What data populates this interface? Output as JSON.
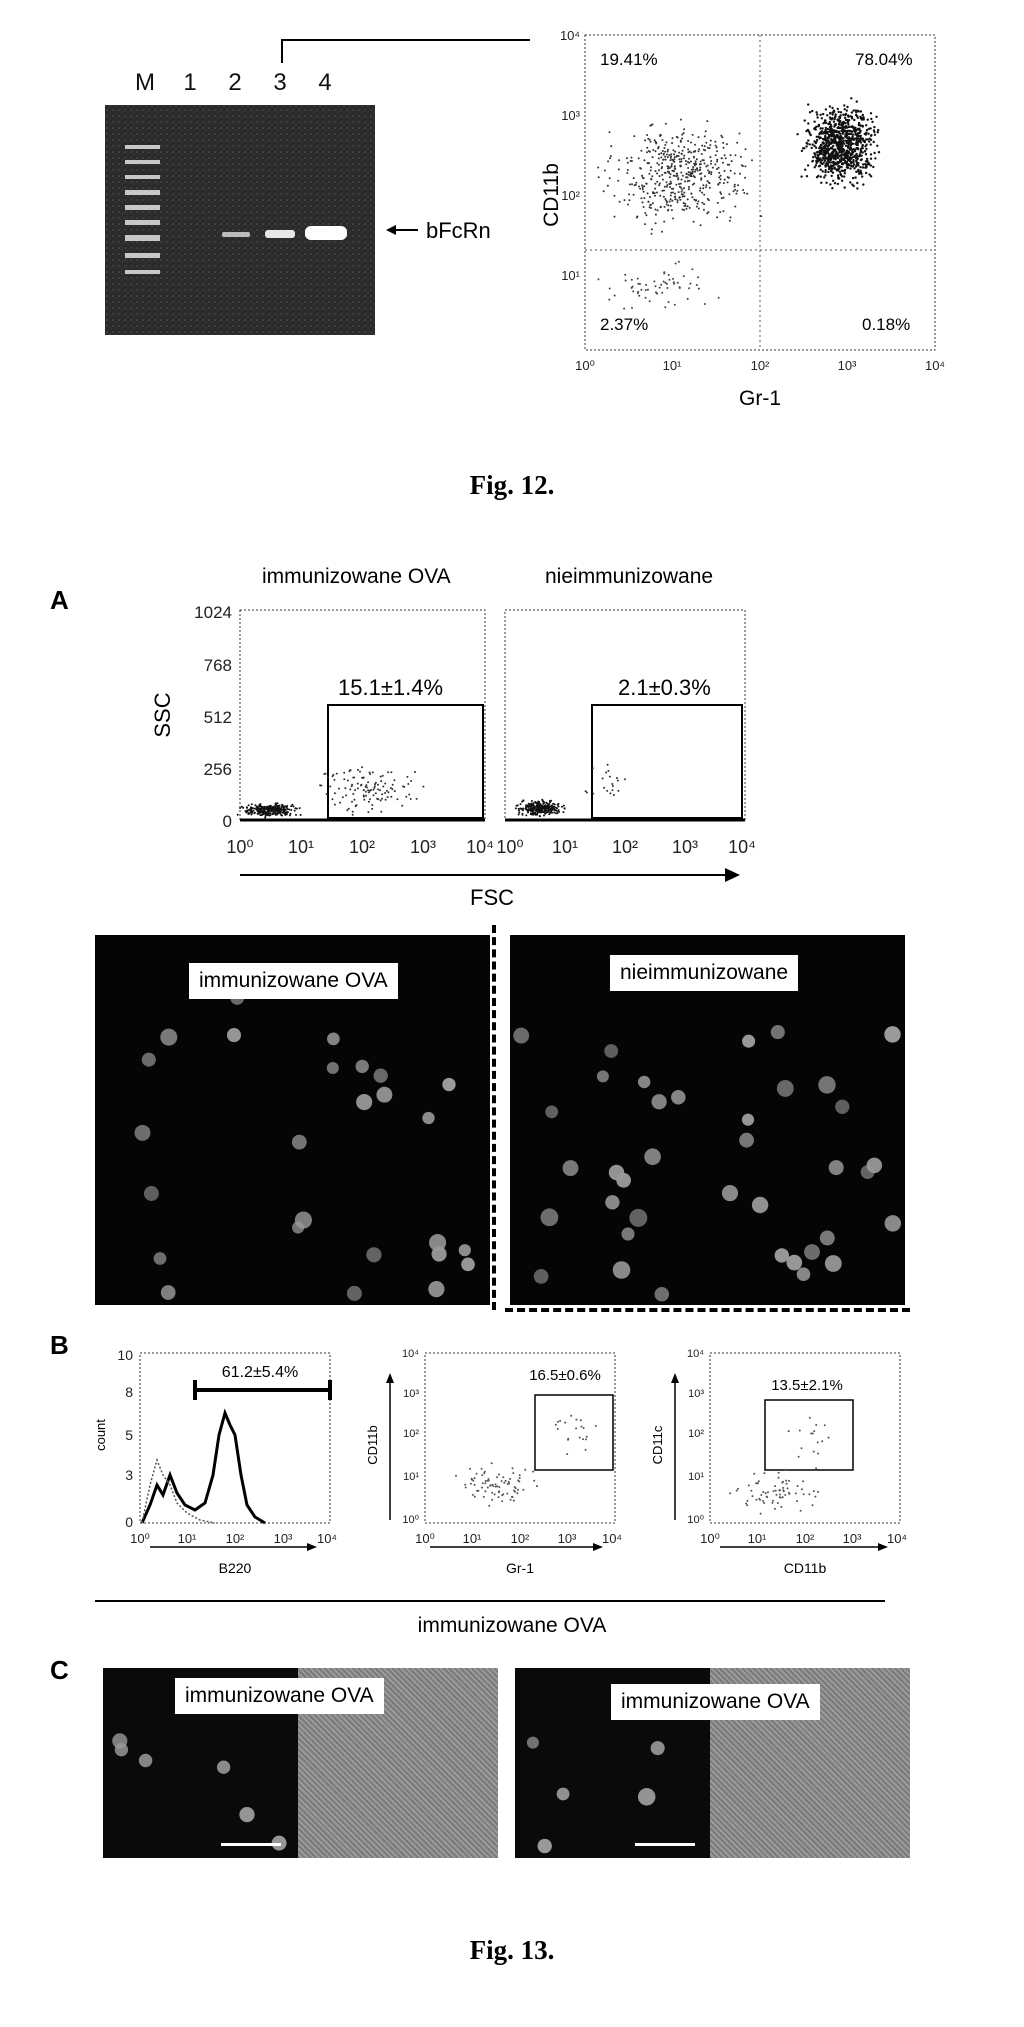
{
  "fig12": {
    "gel": {
      "lanes": [
        "M",
        "1",
        "2",
        "3",
        "4"
      ],
      "band_label": "bFcRn"
    },
    "flow": {
      "y_axis": "CD11b",
      "x_axis": "Gr-1",
      "y_ticks": [
        "10⁰",
        "10¹",
        "10²",
        "10³",
        "10⁴"
      ],
      "x_ticks": [
        "10⁰",
        "10¹",
        "10²",
        "10³",
        "10⁴"
      ],
      "q_top_left": "19.41%",
      "q_top_right": "78.04%",
      "q_bottom_left": "2.37%",
      "q_bottom_right": "0.18%"
    },
    "caption": "Fig. 12."
  },
  "fig13": {
    "panel_a": {
      "letter": "A",
      "title_left": "immunizowane OVA",
      "title_right": "nieimmunizowane",
      "y_axis": "SSC",
      "x_axis": "FSC",
      "y_ticks": [
        "1024",
        "768",
        "512",
        "256",
        "0"
      ],
      "x_ticks_left": [
        "10⁰",
        "10¹",
        "10²",
        "10³",
        "10⁴"
      ],
      "x_ticks_right": [
        "10⁰",
        "10¹",
        "10²",
        "10³",
        "10⁴"
      ],
      "pct_left": "15.1±1.4%",
      "pct_right": "2.1±0.3%",
      "micro_label_left": "immunizowane OVA",
      "micro_label_right": "nieimmunizowane"
    },
    "panel_b": {
      "letter": "B",
      "hist": {
        "y_axis": "count",
        "x_axis": "B220",
        "y_ticks": [
          "10",
          "8",
          "5",
          "3",
          "0"
        ],
        "x_ticks": [
          "10⁰",
          "10¹",
          "10²",
          "10³",
          "10⁴"
        ],
        "pct": "61.2±5.4%"
      },
      "dot1": {
        "y_axis": "CD11b",
        "x_axis": "Gr-1",
        "ticks": [
          "10⁰",
          "10¹",
          "10²",
          "10³",
          "10⁴"
        ],
        "pct": "16.5±0.6%"
      },
      "dot2": {
        "y_axis": "CD11c",
        "x_axis": "CD11b",
        "ticks": [
          "10⁰",
          "10¹",
          "10²",
          "10³",
          "10⁴"
        ],
        "pct": "13.5±2.1%"
      },
      "group_label": "immunizowane OVA"
    },
    "panel_c": {
      "letter": "C",
      "label_left": "immunizowane OVA",
      "label_right": "immunizowane OVA"
    },
    "caption": "Fig. 13."
  }
}
